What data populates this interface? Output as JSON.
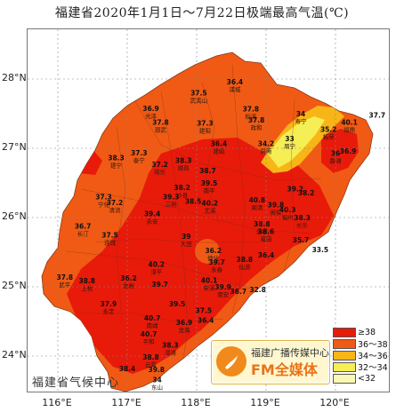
{
  "title": "福建省2020年1月1日～7月22日极端最高气温(℃)",
  "y_ticks": [
    "28°N",
    "27°N",
    "26°N",
    "25°N",
    "24°N"
  ],
  "x_ticks": [
    "116°E",
    "117°E",
    "118°E",
    "119°E",
    "120°E"
  ],
  "legend": [
    {
      "label": "≥38",
      "color": "#e81a0a"
    },
    {
      "label": "36～38",
      "color": "#f05a14"
    },
    {
      "label": "34～36",
      "color": "#f7b516"
    },
    {
      "label": "32～34",
      "color": "#f5ee54"
    },
    {
      "label": "<32",
      "color": "#fbf7b4"
    }
  ],
  "brand": {
    "cn": "福建广播传媒中心",
    "fm": "FM全媒体"
  },
  "credit": "福建省气候中心",
  "stations": [
    {
      "v": "36.4",
      "n": "浦城",
      "lon": 118.55,
      "lat": 27.92
    },
    {
      "v": "37.5",
      "n": "武夷山",
      "lon": 118.03,
      "lat": 27.76
    },
    {
      "v": "36.9",
      "n": "光泽",
      "lon": 117.34,
      "lat": 27.54
    },
    {
      "v": "37.8",
      "n": "邵武",
      "lon": 117.48,
      "lat": 27.34
    },
    {
      "v": "37.3",
      "n": "建阳",
      "lon": 118.12,
      "lat": 27.33
    },
    {
      "v": "37.8",
      "n": "松溪",
      "lon": 118.78,
      "lat": 27.53
    },
    {
      "v": "37.8",
      "n": "政和",
      "lon": 118.86,
      "lat": 27.37
    },
    {
      "v": "34",
      "n": "寿宁",
      "lon": 119.5,
      "lat": 27.46
    },
    {
      "v": "33",
      "n": "周宁",
      "lon": 119.34,
      "lat": 27.1
    },
    {
      "v": "40.1",
      "n": "福鼎",
      "lon": 120.2,
      "lat": 27.34
    },
    {
      "v": "37.7",
      "n": "",
      "lon": 120.6,
      "lat": 27.44
    },
    {
      "v": "35.2",
      "n": "柘荣",
      "lon": 119.9,
      "lat": 27.24
    },
    {
      "v": "34.2",
      "n": "屏南",
      "lon": 119.0,
      "lat": 27.03
    },
    {
      "v": "36",
      "n": "霞浦",
      "lon": 120.0,
      "lat": 26.89
    },
    {
      "v": "36.9",
      "n": "",
      "lon": 120.18,
      "lat": 26.92
    },
    {
      "v": "36.4",
      "n": "建瓯",
      "lon": 118.32,
      "lat": 27.03
    },
    {
      "v": "37.3",
      "n": "泰宁",
      "lon": 117.17,
      "lat": 26.9
    },
    {
      "v": "38.3",
      "n": "建宁",
      "lon": 116.84,
      "lat": 26.83
    },
    {
      "v": "37.2",
      "n": "将乐",
      "lon": 117.47,
      "lat": 26.73
    },
    {
      "v": "38.3",
      "n": "顺昌",
      "lon": 117.81,
      "lat": 26.79
    },
    {
      "v": "38.7",
      "n": "",
      "lon": 118.16,
      "lat": 26.64
    },
    {
      "v": "38.2",
      "n": "沙县",
      "lon": 117.79,
      "lat": 26.4
    },
    {
      "v": "39.5",
      "n": "南平",
      "lon": 118.18,
      "lat": 26.46
    },
    {
      "v": "37.3",
      "n": "宁化",
      "lon": 116.66,
      "lat": 26.26
    },
    {
      "v": "37.2",
      "n": "清流",
      "lon": 116.82,
      "lat": 26.18
    },
    {
      "v": "39.3",
      "n": "三明",
      "lon": 117.63,
      "lat": 26.26
    },
    {
      "v": "38.5",
      "n": "",
      "lon": 117.95,
      "lat": 26.2
    },
    {
      "v": "40.2",
      "n": "尤溪",
      "lon": 118.19,
      "lat": 26.17
    },
    {
      "v": "40.8",
      "n": "闽清",
      "lon": 118.87,
      "lat": 26.22
    },
    {
      "v": "39.8",
      "n": "闽侯",
      "lon": 119.14,
      "lat": 26.15
    },
    {
      "v": "40.3",
      "n": "福州",
      "lon": 119.31,
      "lat": 26.08
    },
    {
      "v": "38.3",
      "n": "长乐",
      "lon": 119.52,
      "lat": 25.96
    },
    {
      "v": "38.2",
      "n": "",
      "lon": 119.58,
      "lat": 26.32
    },
    {
      "v": "39.2",
      "n": "",
      "lon": 119.42,
      "lat": 26.38
    },
    {
      "v": "36.7",
      "n": "长汀",
      "lon": 116.36,
      "lat": 25.84
    },
    {
      "v": "37.5",
      "n": "连城",
      "lon": 116.75,
      "lat": 25.71
    },
    {
      "v": "39.4",
      "n": "永安",
      "lon": 117.36,
      "lat": 26.02
    },
    {
      "v": "39",
      "n": "大田",
      "lon": 117.85,
      "lat": 25.69
    },
    {
      "v": "38.8",
      "n": "永泰",
      "lon": 118.94,
      "lat": 25.87
    },
    {
      "v": "38.6",
      "n": "莆田",
      "lon": 119.0,
      "lat": 25.76
    },
    {
      "v": "35.7",
      "n": "",
      "lon": 119.5,
      "lat": 25.64
    },
    {
      "v": "33.5",
      "n": "",
      "lon": 119.78,
      "lat": 25.5
    },
    {
      "v": "36.2",
      "n": "德化",
      "lon": 118.24,
      "lat": 25.49
    },
    {
      "v": "39.7",
      "n": "永春",
      "lon": 118.29,
      "lat": 25.32
    },
    {
      "v": "38.8",
      "n": "仙游",
      "lon": 118.69,
      "lat": 25.36
    },
    {
      "v": "36.4",
      "n": "",
      "lon": 119.0,
      "lat": 25.42
    },
    {
      "v": "40.2",
      "n": "漳平",
      "lon": 117.42,
      "lat": 25.29
    },
    {
      "v": "37.8",
      "n": "武平",
      "lon": 116.1,
      "lat": 25.1
    },
    {
      "v": "38.8",
      "n": "上杭",
      "lon": 116.42,
      "lat": 25.05
    },
    {
      "v": "36.2",
      "n": "龙岩",
      "lon": 117.02,
      "lat": 25.09
    },
    {
      "v": "39.7",
      "n": "",
      "lon": 117.47,
      "lat": 25.0
    },
    {
      "v": "40.1",
      "n": "安溪",
      "lon": 118.18,
      "lat": 25.06
    },
    {
      "v": "39.9",
      "n": "南安",
      "lon": 118.38,
      "lat": 24.96
    },
    {
      "v": "36.7",
      "n": "",
      "lon": 118.6,
      "lat": 24.9
    },
    {
      "v": "32.8",
      "n": "",
      "lon": 118.88,
      "lat": 24.92
    },
    {
      "v": "37.9",
      "n": "永定",
      "lon": 116.73,
      "lat": 24.72
    },
    {
      "v": "39.5",
      "n": "",
      "lon": 117.72,
      "lat": 24.72
    },
    {
      "v": "37.5",
      "n": "",
      "lon": 118.1,
      "lat": 24.62
    },
    {
      "v": "40.7",
      "n": "南靖",
      "lon": 117.36,
      "lat": 24.51
    },
    {
      "v": "36.9",
      "n": "龙海",
      "lon": 117.82,
      "lat": 24.45
    },
    {
      "v": "36.4",
      "n": "",
      "lon": 118.13,
      "lat": 24.48
    },
    {
      "v": "40.7",
      "n": "平和",
      "lon": 117.31,
      "lat": 24.28
    },
    {
      "v": "38.3",
      "n": "漳浦",
      "lon": 117.62,
      "lat": 24.12
    },
    {
      "v": "38.8",
      "n": "云霄",
      "lon": 117.34,
      "lat": 23.95
    },
    {
      "v": "38.4",
      "n": "",
      "lon": 117.0,
      "lat": 23.78
    },
    {
      "v": "39.8",
      "n": "",
      "lon": 117.42,
      "lat": 23.77
    },
    {
      "v": "34",
      "n": "东山",
      "lon": 117.43,
      "lat": 23.62
    }
  ]
}
